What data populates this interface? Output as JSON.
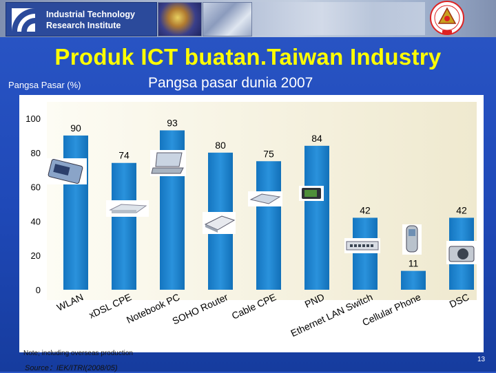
{
  "header": {
    "org_line1": "Industrial Technology",
    "org_line2": "Research Institute"
  },
  "slide": {
    "title": "Produk ICT buatan.Taiwan Industry",
    "y_axis_caption": "Pangsa Pasar (%)",
    "subtitle": "Pangsa pasar dunia 2007",
    "note": "Note; including overseas production",
    "source": "Source：IEK/ITRI(2008/05)",
    "page_number": "13"
  },
  "colors": {
    "bar": "#1a82cc",
    "title": "#ffff00",
    "background": "#1f49b8",
    "plot_area": "#f8f6ea"
  },
  "chart_data": {
    "type": "bar",
    "categories": [
      "WLAN",
      "xDSL CPE",
      "Notebook PC",
      "SOHO Router",
      "Cable CPE",
      "PND",
      "Ethernet LAN Switch",
      "Cellular Phone",
      "DSC"
    ],
    "values": [
      90,
      74,
      93,
      80,
      75,
      84,
      42,
      11,
      42
    ],
    "data_labels": [
      "90",
      "74",
      "93",
      "80",
      "75",
      "84",
      "42",
      "11",
      "42"
    ],
    "y_ticks": [
      "0",
      "20",
      "40",
      "60",
      "80",
      "100"
    ],
    "ylim": [
      0,
      100
    ],
    "ylabel": "Pangsa Pasar (%)",
    "title": "Pangsa pasar dunia 2007",
    "grid": false,
    "legend": "none",
    "product_images": [
      "wireless-card-icon",
      "dsl-modem-icon",
      "notebook-pc-icon",
      "soho-router-icon",
      "cable-modem-icon",
      "gps-navigator-icon",
      "lan-switch-icon",
      "cellular-phone-icon",
      "digital-camera-icon"
    ]
  }
}
